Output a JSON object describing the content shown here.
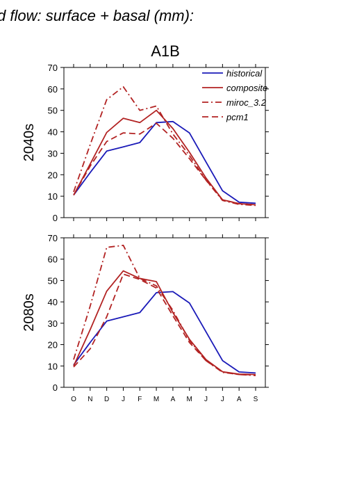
{
  "title": "d flow: surface + basal (mm):",
  "panel_title": "A1B",
  "colors": {
    "historical": "#1a1ab8",
    "scenario": "#b22222",
    "axis": "#000000"
  },
  "chart_data": [
    {
      "type": "line",
      "row_label": "2040s",
      "x": [
        "O",
        "N",
        "D",
        "J",
        "F",
        "M",
        "A",
        "M",
        "J",
        "J",
        "A",
        "S"
      ],
      "ylim": [
        0,
        70
      ],
      "yticks": [
        0,
        10,
        20,
        30,
        40,
        50,
        60,
        70
      ],
      "legend_placement": "top-right",
      "grid": false,
      "series": [
        {
          "name": "historical",
          "style": "solid",
          "color": "#1a1ab8",
          "values": [
            10.5,
            21,
            31,
            33,
            35,
            44.3,
            44.8,
            39.5,
            26,
            12.5,
            7.2,
            6.7
          ]
        },
        {
          "name": "composite",
          "style": "solid",
          "color": "#b22222",
          "values": [
            10.5,
            25,
            39.7,
            46.3,
            44.3,
            50,
            41.5,
            30.5,
            18.5,
            8.3,
            6.5,
            6
          ]
        },
        {
          "name": "miroc_3.2",
          "style": "dash-dot",
          "color": "#b22222",
          "values": [
            12,
            34,
            55,
            61,
            50,
            52,
            39,
            29,
            17.5,
            8,
            6.2,
            5.7
          ]
        },
        {
          "name": "pcm1",
          "style": "dashed",
          "color": "#b22222",
          "values": [
            10.5,
            24,
            35.5,
            39.5,
            39,
            44,
            37,
            27.5,
            17.5,
            8.3,
            6.5,
            6
          ]
        }
      ]
    },
    {
      "type": "line",
      "row_label": "2080s",
      "x": [
        "O",
        "N",
        "D",
        "J",
        "F",
        "M",
        "A",
        "M",
        "J",
        "J",
        "A",
        "S"
      ],
      "ylim": [
        0,
        70
      ],
      "yticks": [
        0,
        10,
        20,
        30,
        40,
        50,
        60,
        70
      ],
      "grid": false,
      "series": [
        {
          "name": "historical",
          "style": "solid",
          "color": "#1a1ab8",
          "values": [
            10.5,
            21,
            31,
            33,
            35,
            44.3,
            44.8,
            39.5,
            26,
            12.5,
            7.2,
            6.7
          ]
        },
        {
          "name": "composite",
          "style": "solid",
          "color": "#b22222",
          "values": [
            10,
            27,
            45,
            54.5,
            51,
            49.5,
            35,
            22.5,
            13,
            7.3,
            6.2,
            6
          ]
        },
        {
          "name": "miroc_3.2",
          "style": "dash-dot",
          "color": "#b22222",
          "values": [
            13,
            38,
            65.5,
            66.5,
            51,
            47.5,
            36,
            22,
            12.5,
            7,
            6,
            5.5
          ]
        },
        {
          "name": "pcm1",
          "style": "dashed",
          "color": "#b22222",
          "values": [
            9.5,
            18,
            33,
            53,
            50.5,
            46.5,
            33.5,
            21,
            12.5,
            7.2,
            6,
            5.8
          ]
        }
      ]
    }
  ]
}
